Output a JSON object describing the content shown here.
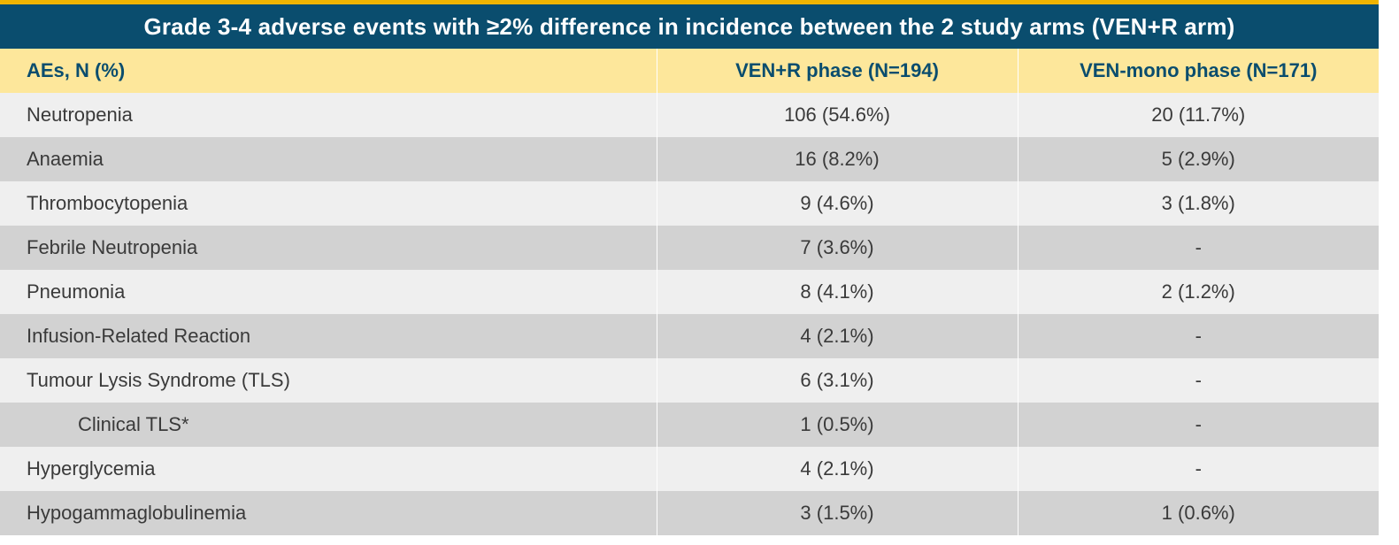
{
  "title": "Grade 3-4 adverse events with ≥2% difference in incidence between the 2 study arms (VEN+R arm)",
  "colors": {
    "title_bg": "#0a4d6e",
    "accent_rule": "#f0b400",
    "header_bg": "#fde79b",
    "header_text": "#0a4d6e",
    "row_light": "#efefef",
    "row_dark": "#d2d2d2"
  },
  "columns": [
    "AEs, N (%)",
    "VEN+R phase (N=194)",
    "VEN-mono phase (N=171)"
  ],
  "rows": [
    {
      "ae": "Neutropenia",
      "venr": "106 (54.6%)",
      "venmono": "20 (11.7%)"
    },
    {
      "ae": "Anaemia",
      "venr": "16 (8.2%)",
      "venmono": "5 (2.9%)"
    },
    {
      "ae": "Thrombocytopenia",
      "venr": "9 (4.6%)",
      "venmono": "3 (1.8%)"
    },
    {
      "ae": "Febrile Neutropenia",
      "venr": "7 (3.6%)",
      "venmono": "-"
    },
    {
      "ae": "Pneumonia",
      "venr": "8 (4.1%)",
      "venmono": "2 (1.2%)"
    },
    {
      "ae": "Infusion-Related Reaction",
      "venr": "4 (2.1%)",
      "venmono": "-"
    },
    {
      "ae": "Tumour Lysis Syndrome (TLS)",
      "venr": "6 (3.1%)",
      "venmono": "-"
    },
    {
      "ae": "Clinical TLS*",
      "venr": "1 (0.5%)",
      "venmono": "-"
    },
    {
      "ae": "Hyperglycemia",
      "venr": "4 (2.1%)",
      "venmono": "-"
    },
    {
      "ae": "Hypogammaglobulinemia",
      "venr": "3 (1.5%)",
      "venmono": "1 (0.6%)"
    }
  ]
}
